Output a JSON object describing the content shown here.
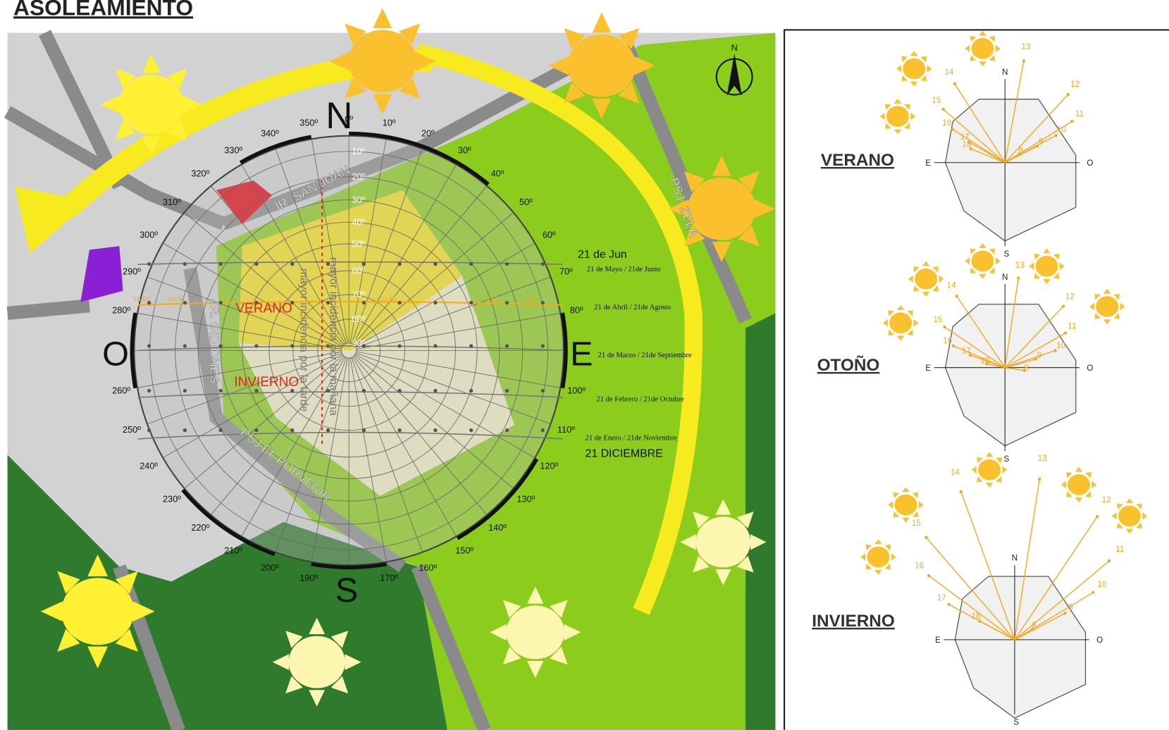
{
  "title": "ASOLEAMIENTO",
  "map": {
    "cardinal_labels": [
      "N",
      "E",
      "S",
      "O"
    ],
    "compass_label": "N",
    "azimuth_labels": [
      "0º",
      "10º",
      "20º",
      "30º",
      "40º",
      "50º",
      "60º",
      "70º",
      "80º",
      "100º",
      "110º",
      "120º",
      "130º",
      "140º",
      "150º",
      "160º",
      "170º",
      "190º",
      "200º",
      "210º",
      "220º",
      "230º",
      "240º",
      "250º",
      "260º",
      "280º",
      "290º",
      "300º",
      "310º",
      "320º",
      "330º",
      "340º",
      "350º"
    ],
    "altitude_labels": [
      "10º",
      "20º",
      "30º",
      "40º",
      "50º",
      "60º",
      "70º",
      "80º",
      "90º"
    ],
    "streets": [
      "JR. SAN JUAN",
      "PSJ. ZELA",
      "PSJ EL PORVENIR",
      "JR. OIDIONES"
    ],
    "zones": [
      "VERANO",
      "INVIERNO"
    ],
    "notes": [
      "mayor incidencia por la mañana",
      "mayor incidencia por la tarde"
    ],
    "sun_path_dates": [
      "21 de Jun",
      "21 de Mayo / 21de  Junio",
      "21 de Abril / 21de  Agosto",
      "21 de Marzo / 21de  Septiembre",
      "21 de Febrero / 21de  Octubre",
      "21 de Enero / 21de  Noviembre",
      "21 DICIEMBRE"
    ],
    "hour_labels": [
      "18:00",
      "16:00",
      "10:00",
      "9:00",
      "8:00"
    ]
  },
  "seasons": [
    {
      "title": "VERANO",
      "axis_labels": [
        "N",
        "S",
        "E",
        "O"
      ],
      "hours": [
        13,
        14,
        12,
        15,
        11,
        16,
        10,
        17,
        9,
        18,
        8
      ]
    },
    {
      "title": "OTOÑO",
      "axis_labels": [
        "N",
        "S",
        "E",
        "O"
      ],
      "hours": [
        13,
        14,
        12,
        15,
        11,
        16,
        10,
        17,
        9,
        18,
        8
      ]
    },
    {
      "title": "INVIERNO",
      "axis_labels": [
        "N",
        "S",
        "E",
        "O"
      ],
      "hours": [
        13,
        14,
        12,
        15,
        11,
        16,
        10,
        17,
        9,
        18,
        8
      ]
    }
  ]
}
